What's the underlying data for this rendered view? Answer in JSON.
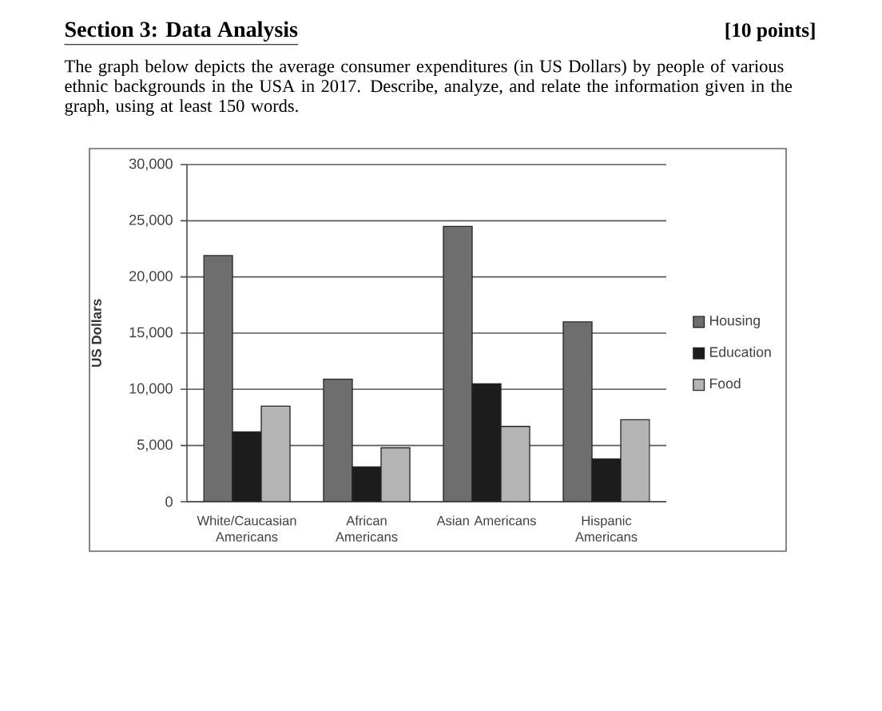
{
  "chart_data": {
    "type": "bar",
    "title": "Section 3: Data Analysis",
    "subtitle": "The graph below depicts the average consumer expenditures (in US Dollars) by people of various ethnic backgrounds in the USA in 2017. Describe, analyze, and relate the information given in the graph, using at least 150 words.",
    "annotations": [
      "[10 points]"
    ],
    "ylabel": "US Dollars",
    "categories": [
      "White/Caucasian Americans",
      "African Americans",
      "Asian Americans",
      "Hispanic Americans"
    ],
    "series": [
      {
        "name": "Housing",
        "color": "#6e6e6e",
        "values": [
          21900,
          10900,
          24500,
          16000
        ]
      },
      {
        "name": "Education",
        "color": "#1c1c1c",
        "values": [
          6200,
          3100,
          10500,
          3800
        ]
      },
      {
        "name": "Food",
        "color": "#b4b4b4",
        "values": [
          8500,
          4800,
          6700,
          7300
        ]
      }
    ],
    "ylim": [
      0,
      30000
    ],
    "yticks": [
      0,
      {
        "value": 5000,
        "label": "5,000"
      },
      {
        "value": 10000,
        "label": "10,000"
      },
      {
        "value": 15000,
        "label": "15,000"
      },
      {
        "value": 20000,
        "label": "20,000"
      },
      {
        "value": 25000,
        "label": "25,000"
      },
      {
        "value": 30000,
        "label": "30,000"
      }
    ],
    "grid": "y",
    "legend": "right"
  }
}
